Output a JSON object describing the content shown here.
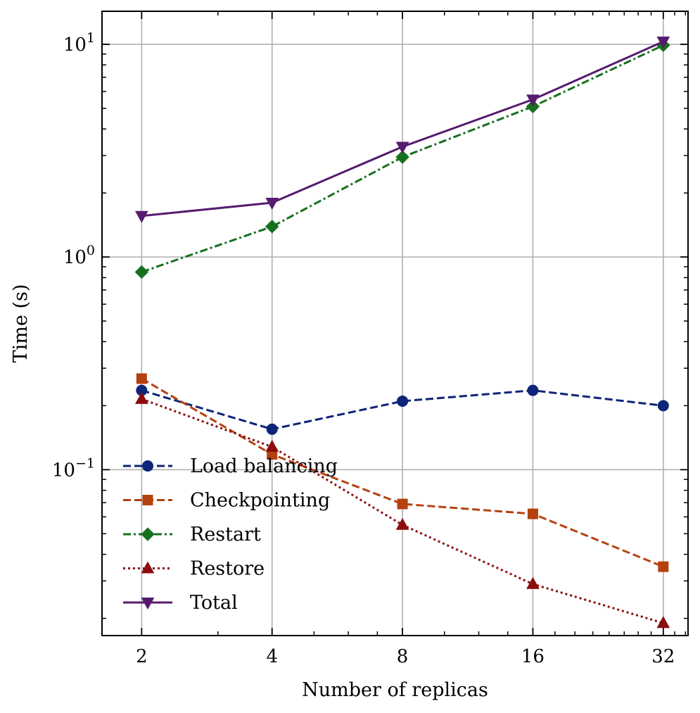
{
  "chart_data": {
    "type": "line",
    "title": "",
    "xlabel": "Number of replicas",
    "ylabel": "Time (s)",
    "xscale": "log2",
    "yscale": "log10",
    "x": [
      2,
      4,
      8,
      16,
      32
    ],
    "x_tick_labels": [
      "2",
      "4",
      "8",
      "16",
      "32"
    ],
    "y_tick_labels": [
      {
        "value": 0.1,
        "base": "10",
        "exp": "−1"
      },
      {
        "value": 1,
        "base": "10",
        "exp": "0"
      },
      {
        "value": 10,
        "base": "10",
        "exp": "1"
      }
    ],
    "xlim": [
      1.62,
      36.5
    ],
    "ylim": [
      0.0166,
      14.3
    ],
    "grid": true,
    "legend_position": "lower-left",
    "series": [
      {
        "name": "Load balancing",
        "color": "#0c2577",
        "linestyle": "dashed",
        "marker": "circle",
        "values": [
          0.236,
          0.155,
          0.21,
          0.236,
          0.2
        ]
      },
      {
        "name": "Checkpointing",
        "color": "#b5410f",
        "linestyle": "dashed",
        "marker": "square",
        "values": [
          0.268,
          0.118,
          0.069,
          0.062,
          0.035
        ]
      },
      {
        "name": "Restart",
        "color": "#16711e",
        "linestyle": "dashdot",
        "marker": "diamond",
        "values": [
          0.85,
          1.39,
          2.95,
          5.1,
          9.9
        ]
      },
      {
        "name": "Restore",
        "color": "#8b0d0d",
        "linestyle": "dotted",
        "marker": "triangle-up",
        "values": [
          0.215,
          0.128,
          0.055,
          0.029,
          0.019
        ]
      },
      {
        "name": "Total",
        "color": "#561b6e",
        "linestyle": "solid",
        "marker": "triangle-down",
        "values": [
          1.56,
          1.8,
          3.3,
          5.5,
          10.3
        ]
      }
    ]
  }
}
